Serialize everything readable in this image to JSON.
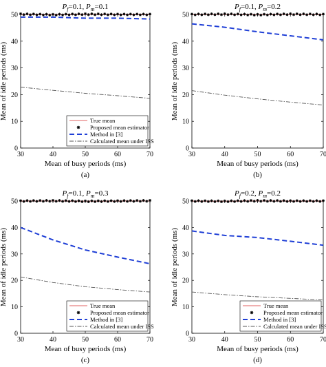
{
  "chart_data": [
    {
      "type": "line",
      "title_prefix_1": "P",
      "title_sub_1": "f",
      "title_val_1": "=0.1, ",
      "title_prefix_2": "P",
      "title_sub_2": "m",
      "title_val_2": "=0.1",
      "xlabel": "Mean of busy periods (ms)",
      "ylabel": "Mean of idle periods (ms)",
      "caption": "(a)",
      "xlim": [
        30,
        70
      ],
      "ylim": [
        0,
        50
      ],
      "xticks": [
        30,
        40,
        50,
        60,
        70
      ],
      "yticks": [
        0,
        10,
        20,
        30,
        40,
        50
      ],
      "legend": true,
      "legend_position": "bottom-right",
      "x": [
        30,
        40,
        50,
        60,
        70
      ],
      "series": [
        {
          "name": "True mean",
          "style": "solid",
          "color": "#e06060",
          "values": [
            50,
            50,
            50,
            50,
            50
          ]
        },
        {
          "name": "Proposed mean estimator",
          "style": "markers",
          "color": "#000000",
          "values": [
            50.1,
            49.9,
            50.1,
            50.0,
            50.0
          ]
        },
        {
          "name": "Method in [3]",
          "style": "dashed",
          "color": "#1f3fd6",
          "values": [
            49.0,
            49.0,
            48.6,
            48.6,
            48.3
          ]
        },
        {
          "name": "Calculated mean under ISS",
          "style": "dashdot",
          "color": "#555555",
          "values": [
            22.8,
            21.6,
            20.5,
            19.6,
            18.6
          ]
        }
      ]
    },
    {
      "type": "line",
      "title_prefix_1": "P",
      "title_sub_1": "f",
      "title_val_1": "=0.1, ",
      "title_prefix_2": "P",
      "title_sub_2": "m",
      "title_val_2": "=0.2",
      "xlabel": "Mean of busy periods (ms)",
      "ylabel": "Mean of idle periods (ms)",
      "caption": "(b)",
      "xlim": [
        30,
        70
      ],
      "ylim": [
        0,
        50
      ],
      "xticks": [
        30,
        40,
        50,
        60,
        70
      ],
      "yticks": [
        0,
        10,
        20,
        30,
        40,
        50
      ],
      "legend": false,
      "x": [
        30,
        40,
        50,
        60,
        70
      ],
      "series": [
        {
          "name": "True mean",
          "style": "solid",
          "color": "#e06060",
          "values": [
            50,
            50,
            50,
            50,
            50
          ]
        },
        {
          "name": "Proposed mean estimator",
          "style": "markers",
          "color": "#000000",
          "values": [
            50.0,
            50.1,
            49.9,
            50.1,
            50.0
          ]
        },
        {
          "name": "Method in [3]",
          "style": "dashed",
          "color": "#1f3fd6",
          "values": [
            46.5,
            45.2,
            43.5,
            42.0,
            40.5
          ]
        },
        {
          "name": "Calculated mean under ISS",
          "style": "dashdot",
          "color": "#555555",
          "values": [
            21.5,
            19.8,
            18.4,
            17.2,
            16.1
          ]
        }
      ]
    },
    {
      "type": "line",
      "title_prefix_1": "P",
      "title_sub_1": "f",
      "title_val_1": "=0.1, ",
      "title_prefix_2": "P",
      "title_sub_2": "m",
      "title_val_2": "=0.3",
      "xlabel": "Mean of busy periods (ms)",
      "ylabel": "Mean of idle periods (ms)",
      "caption": "(c)",
      "xlim": [
        30,
        70
      ],
      "ylim": [
        0,
        50
      ],
      "xticks": [
        30,
        40,
        50,
        60,
        70
      ],
      "yticks": [
        0,
        10,
        20,
        30,
        40,
        50
      ],
      "legend": true,
      "legend_position": "bottom-right",
      "x": [
        30,
        40,
        50,
        60,
        70
      ],
      "series": [
        {
          "name": "True mean",
          "style": "solid",
          "color": "#e06060",
          "values": [
            50,
            50,
            50,
            50,
            50
          ]
        },
        {
          "name": "Proposed mean estimator",
          "style": "markers",
          "color": "#000000",
          "values": [
            50.0,
            50.1,
            49.9,
            50.0,
            50.1
          ]
        },
        {
          "name": "Method in [3]",
          "style": "dashed",
          "color": "#1f3fd6",
          "values": [
            40.0,
            35.3,
            31.5,
            28.8,
            26.3
          ]
        },
        {
          "name": "Calculated mean under ISS",
          "style": "dashdot",
          "color": "#555555",
          "values": [
            21.3,
            19.2,
            17.6,
            16.5,
            15.6
          ]
        }
      ]
    },
    {
      "type": "line",
      "title_prefix_1": "P",
      "title_sub_1": "f",
      "title_val_1": "=0.2, ",
      "title_prefix_2": "P",
      "title_sub_2": "m",
      "title_val_2": "=0.2",
      "xlabel": "Mean of busy periods (ms)",
      "ylabel": "Mean of idle periods (ms)",
      "caption": "(d)",
      "xlim": [
        30,
        70
      ],
      "ylim": [
        0,
        50
      ],
      "xticks": [
        30,
        40,
        50,
        60,
        70
      ],
      "yticks": [
        0,
        10,
        20,
        30,
        40,
        50
      ],
      "legend": true,
      "legend_position": "bottom-right",
      "x": [
        30,
        40,
        50,
        60,
        70
      ],
      "series": [
        {
          "name": "True mean",
          "style": "solid",
          "color": "#e06060",
          "values": [
            50,
            50,
            50,
            50,
            50
          ]
        },
        {
          "name": "Proposed mean estimator",
          "style": "markers",
          "color": "#000000",
          "values": [
            50.0,
            49.9,
            50.1,
            50.0,
            50.0
          ]
        },
        {
          "name": "Method in [3]",
          "style": "dashed",
          "color": "#1f3fd6",
          "values": [
            38.7,
            37.0,
            36.2,
            34.8,
            33.3
          ]
        },
        {
          "name": "Calculated mean under ISS",
          "style": "dashdot",
          "color": "#555555",
          "values": [
            15.6,
            14.6,
            13.8,
            13.2,
            12.6
          ]
        }
      ]
    }
  ]
}
